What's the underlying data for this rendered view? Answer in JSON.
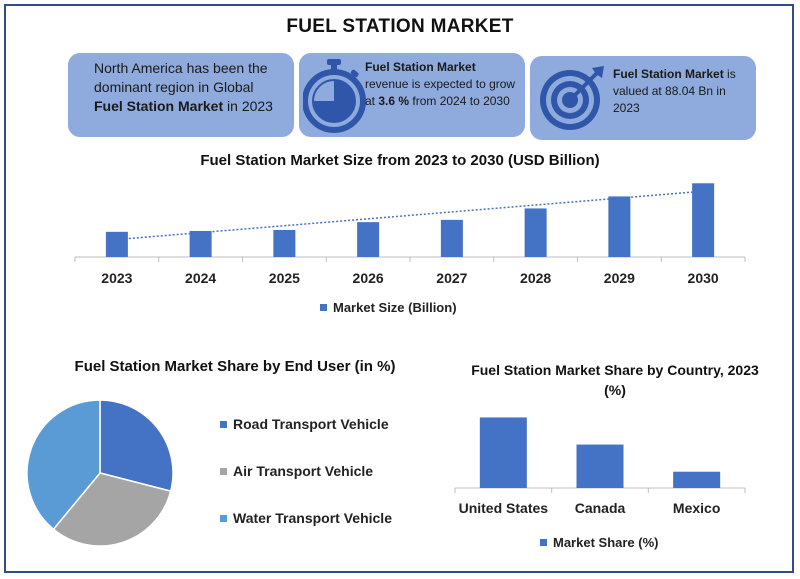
{
  "title": "FUEL STATION MARKET",
  "info_boxes": {
    "box1": {
      "pre": "North America has been the dominant region in Global ",
      "bold": "Fuel Station Market",
      "post": " in 2023"
    },
    "box2": {
      "bold1": "Fuel Station Market",
      "pre": " revenue is expected to grow at ",
      "bold2": "3.6 %",
      "post": " from 2024 to 2030",
      "icon": "stopwatch-icon"
    },
    "box3": {
      "bold1": "Fuel Station Market",
      "post": " is valued at 88.04 Bn in 2023",
      "icon": "target-icon"
    }
  },
  "colors": {
    "bar": "#4472c4",
    "box": "#8faadc",
    "icon": "#2f56a8",
    "pie_road": "#4472c4",
    "pie_air": "#a5a5a5",
    "pie_water": "#5b9bd5"
  },
  "chart_data": [
    {
      "type": "bar",
      "title": "Fuel Station Market Size from 2023 to 2030 (USD Billion)",
      "categories": [
        "2023",
        "2024",
        "2025",
        "2026",
        "2027",
        "2028",
        "2029",
        "2030"
      ],
      "series": [
        {
          "name": "Market Size (Billion)",
          "values": [
            88.04,
            91.2,
            94.5,
            122,
            130,
            170,
            212,
            258
          ]
        }
      ],
      "trendline": "linear, dotted",
      "ylim": [
        0,
        280
      ],
      "legend": "bottom"
    },
    {
      "type": "pie",
      "title": "Fuel Station  Market Share by End User (in %)",
      "labels": [
        "Road Transport Vehicle",
        "Air Transport Vehicle",
        "Water Transport Vehicle"
      ],
      "values": [
        29,
        32,
        39
      ],
      "legend": "right"
    },
    {
      "type": "bar",
      "title": "Fuel Station Market  Share by Country, 2023 (%)",
      "categories": [
        "United States",
        "Canada",
        "Mexico"
      ],
      "series": [
        {
          "name": "Market Share (%)",
          "values": [
            65,
            40,
            15
          ]
        }
      ],
      "ylim": [
        0,
        70
      ],
      "legend": "bottom"
    }
  ]
}
